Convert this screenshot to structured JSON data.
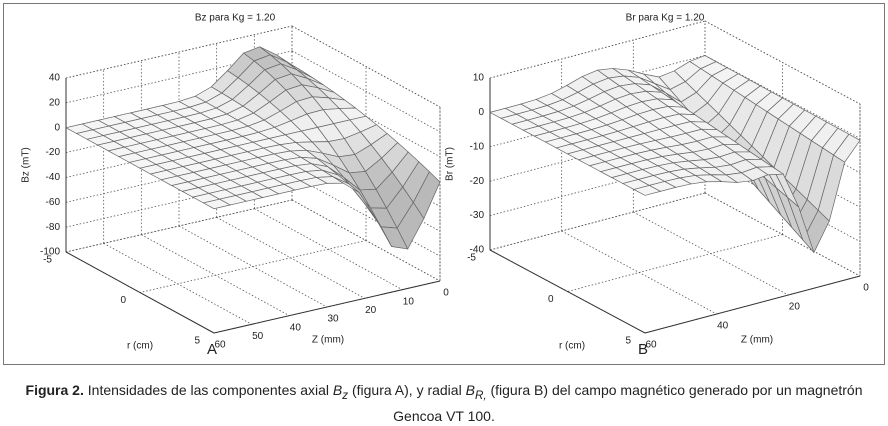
{
  "figure": {
    "panels": [
      {
        "title": "Bz para Kg = 1.20",
        "value_label": "Bz (mT)",
        "value_ticks": [
          40,
          20,
          0,
          -20,
          -40,
          -60,
          -80,
          -100
        ],
        "r_label": "r (cm)",
        "r_ticks": [
          -5,
          0,
          5
        ],
        "z_label": "Z (mm)",
        "z_ticks": [
          60,
          50,
          40,
          30,
          20,
          10,
          0
        ],
        "letter": "A"
      },
      {
        "title": "Br para Kg = 1.20",
        "value_label": "Br (mT)",
        "value_ticks": [
          10,
          0,
          -10,
          -20,
          -30,
          -40
        ],
        "r_label": "r (cm)",
        "r_ticks": [
          -5,
          0,
          5
        ],
        "z_label": "Z (mm)",
        "z_ticks": [
          60,
          40,
          20,
          0
        ],
        "letter": "B"
      }
    ]
  },
  "caption": {
    "label": "Figura 2.",
    "part1": " Intensidades de las componentes axial ",
    "sym1": "B",
    "sub1": "z",
    "part2": " (figura A), y radial ",
    "sym2": "B",
    "sub2": "R,",
    "part3": " (figura B) del campo magnético generado por un magnetrón Gencoa VT 100."
  }
}
